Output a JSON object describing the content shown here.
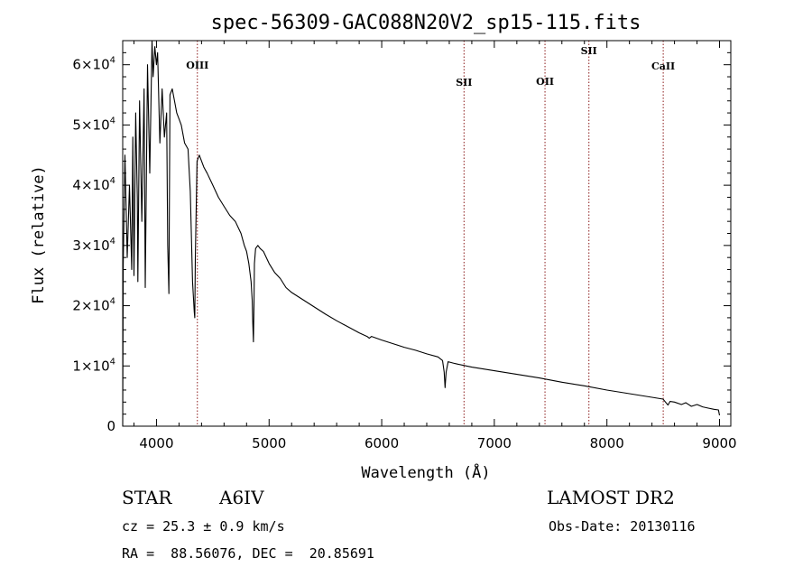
{
  "chart_data": {
    "type": "line",
    "title": "spec-56309-GAC088N20V2_sp15-115.fits",
    "xlabel": "Wavelength (Å)",
    "ylabel": "Flux (relative)",
    "xlim": [
      3700,
      9100
    ],
    "ylim": [
      0,
      64000
    ],
    "xticks": [
      4000,
      5000,
      6000,
      7000,
      8000,
      9000
    ],
    "yticks": [
      {
        "label": "0",
        "exp": ""
      },
      {
        "label": "1×10",
        "exp": "4"
      },
      {
        "label": "2×10",
        "exp": "4"
      },
      {
        "label": "3×10",
        "exp": "4"
      },
      {
        "label": "4×10",
        "exp": "4"
      },
      {
        "label": "5×10",
        "exp": "4"
      },
      {
        "label": "6×10",
        "exp": "4"
      }
    ],
    "ytick_values": [
      0,
      10000,
      20000,
      30000,
      40000,
      50000,
      60000
    ],
    "lines": [
      {
        "name": "OIII",
        "x": 4363
      },
      {
        "name": "SII",
        "x": 6731
      },
      {
        "name": "OII",
        "x": 7450
      },
      {
        "name": "SII",
        "x": 7840
      },
      {
        "name": "CaII",
        "x": 8500
      }
    ],
    "line_color": "#8b1a1a",
    "series": [
      {
        "x": [
          3700,
          3705,
          3720,
          3740,
          3760,
          3780,
          3790,
          3800,
          3815,
          3830,
          3835,
          3850,
          3870,
          3890,
          3900,
          3920,
          3940,
          3960,
          3970,
          3985,
          4000,
          4010,
          4030,
          4050,
          4070,
          4090,
          4100,
          4110,
          4120,
          4140,
          4160,
          4180,
          4200,
          4220,
          4250,
          4280,
          4300,
          4320,
          4335,
          4340,
          4345,
          4360,
          4380,
          4400,
          4420,
          4450,
          4500,
          4550,
          4600,
          4650,
          4700,
          4750,
          4780,
          4800,
          4820,
          4840,
          4850,
          4855,
          4861,
          4866,
          4870,
          4880,
          4900,
          4920,
          4950,
          5000,
          5050,
          5100,
          5150,
          5200,
          5300,
          5400,
          5500,
          5600,
          5700,
          5800,
          5870,
          5890,
          5910,
          6000,
          6100,
          6200,
          6300,
          6400,
          6500,
          6540,
          6555,
          6563,
          6572,
          6590,
          6650,
          6800,
          7000,
          7200,
          7400,
          7600,
          7800,
          8000,
          8200,
          8400,
          8498,
          8520,
          8542,
          8560,
          8600,
          8662,
          8700,
          8750,
          8800,
          8850,
          8900,
          8950,
          8990,
          9000
        ],
        "y": [
          0,
          27000,
          45000,
          28000,
          40000,
          26000,
          48000,
          25000,
          52000,
          38000,
          24000,
          54000,
          34000,
          56000,
          23000,
          60000,
          42000,
          64000,
          58000,
          63000,
          60000,
          62000,
          47000,
          56000,
          48000,
          52000,
          30000,
          22000,
          55000,
          56000,
          54000,
          52000,
          51000,
          50000,
          47000,
          46000,
          39000,
          24000,
          19000,
          18000,
          28000,
          44000,
          45000,
          44000,
          43000,
          42000,
          40000,
          38000,
          36500,
          35000,
          34000,
          32000,
          30000,
          29000,
          27000,
          24000,
          21000,
          17000,
          14000,
          20000,
          27000,
          29500,
          30000,
          29500,
          29000,
          27000,
          25500,
          24500,
          23000,
          22200,
          21000,
          19800,
          18600,
          17500,
          16500,
          15500,
          14900,
          14600,
          14900,
          14300,
          13700,
          13100,
          12600,
          12000,
          11500,
          10900,
          9000,
          6400,
          9000,
          10700,
          10400,
          9800,
          9200,
          8600,
          8000,
          7300,
          6700,
          6000,
          5400,
          4800,
          4500,
          4000,
          3500,
          4100,
          4000,
          3600,
          3900,
          3300,
          3600,
          3200,
          3000,
          2800,
          2700,
          1800
        ]
      }
    ]
  },
  "info": {
    "object_class": "STAR",
    "spectral_type": "A6IV",
    "survey": "LAMOST DR2",
    "redshift": "cz = 25.3 ± 0.9 km/s",
    "obs_date": "Obs-Date: 20130116",
    "coords": "RA =  88.56076, DEC =  20.85691"
  }
}
